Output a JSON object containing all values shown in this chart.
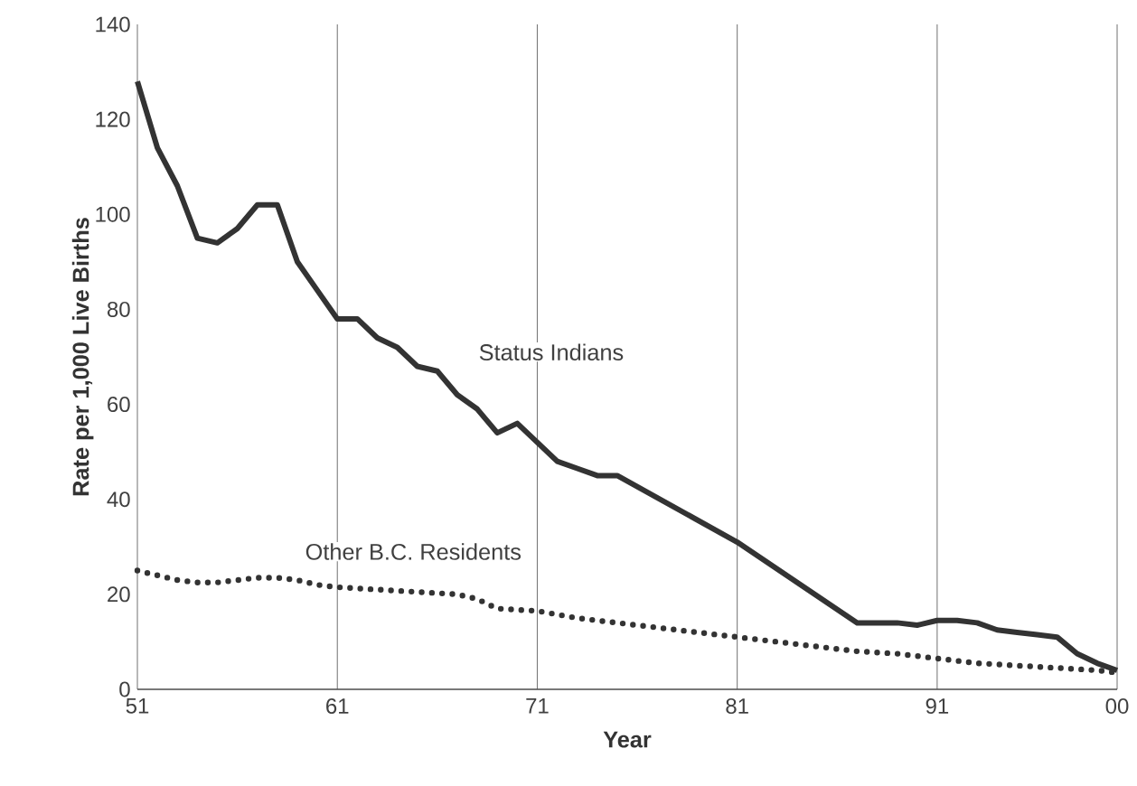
{
  "chart_data": {
    "type": "line",
    "xlabel": "Year",
    "ylabel": "Rate per 1,000 Live Births",
    "xlim": [
      1951,
      2000
    ],
    "ylim": [
      0,
      140
    ],
    "xticks": [
      {
        "value": 1951,
        "label": "51"
      },
      {
        "value": 1961,
        "label": "61"
      },
      {
        "value": 1971,
        "label": "71"
      },
      {
        "value": 1981,
        "label": "81"
      },
      {
        "value": 1991,
        "label": "91"
      },
      {
        "value": 2000,
        "label": "00"
      }
    ],
    "yticks": [
      0,
      20,
      40,
      60,
      80,
      100,
      120,
      140
    ],
    "grid": "x",
    "series": [
      {
        "name": "Status Indians",
        "color": "#333333",
        "line_style": "solid",
        "x": [
          1951,
          1952,
          1953,
          1954,
          1955,
          1956,
          1957,
          1958,
          1959,
          1960,
          1961,
          1962,
          1963,
          1964,
          1965,
          1966,
          1967,
          1968,
          1969,
          1970,
          1971,
          1972,
          1973,
          1974,
          1975,
          1981,
          1987,
          1988,
          1989,
          1990,
          1991,
          1992,
          1993,
          1994,
          1995,
          1996,
          1997,
          1998,
          1999,
          2000
        ],
        "values": [
          128,
          114,
          106,
          95,
          94,
          97,
          102,
          102,
          90,
          84,
          78,
          78,
          74,
          72,
          68,
          67,
          62,
          59,
          54,
          56,
          52,
          48,
          46.5,
          45,
          45,
          31,
          14,
          14,
          14,
          13.5,
          14.5,
          14.5,
          14,
          12.5,
          12,
          11.5,
          11,
          7.5,
          5.5,
          4
        ]
      },
      {
        "name": "Other B.C. Residents",
        "color": "#333333",
        "line_style": "dotted",
        "x": [
          1951,
          1952,
          1953,
          1954,
          1955,
          1956,
          1957,
          1958,
          1959,
          1960,
          1961,
          1963,
          1965,
          1967,
          1968,
          1969,
          1971,
          1973,
          1975,
          1977,
          1979,
          1981,
          1983,
          1985,
          1987,
          1989,
          1991,
          1993,
          1995,
          1997,
          1999,
          2000
        ],
        "values": [
          25,
          24,
          23,
          22.5,
          22.5,
          23,
          23.5,
          23.5,
          23,
          22,
          21.5,
          21,
          20.5,
          20,
          19,
          17,
          16.5,
          15,
          14,
          13,
          12,
          11,
          10,
          9,
          8,
          7.5,
          6.5,
          5.5,
          5,
          4.5,
          4,
          3.5
        ]
      }
    ]
  }
}
